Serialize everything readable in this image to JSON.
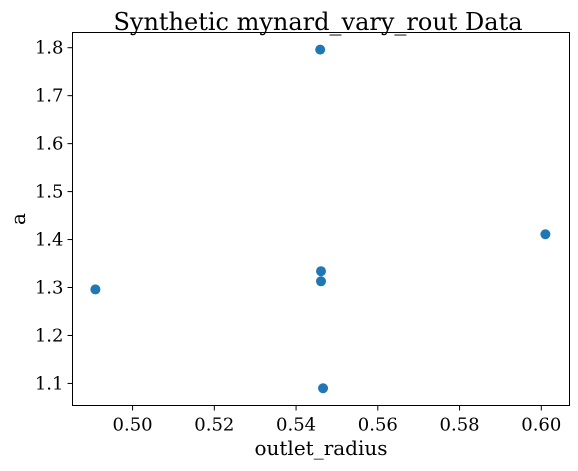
{
  "chart_data": {
    "type": "scatter",
    "title": "Synthetic mynard_vary_rout Data",
    "xlabel": "outlet_radius",
    "ylabel": "a",
    "xlim": [
      0.4853,
      0.6069
    ],
    "ylim": [
      1.054,
      1.8317
    ],
    "x_ticks": [
      0.5,
      0.52,
      0.54,
      0.56,
      0.58,
      0.6
    ],
    "x_tick_labels": [
      "0.50",
      "0.52",
      "0.54",
      "0.56",
      "0.58",
      "0.60"
    ],
    "y_ticks": [
      1.1,
      1.2,
      1.3,
      1.4,
      1.5,
      1.6,
      1.7,
      1.8
    ],
    "y_tick_labels": [
      "1.1",
      "1.2",
      "1.3",
      "1.4",
      "1.5",
      "1.6",
      "1.7",
      "1.8"
    ],
    "grid": false,
    "point_color": "#1f77b4",
    "points": [
      {
        "x": 0.4909,
        "y": 1.296
      },
      {
        "x": 0.5459,
        "y": 1.796
      },
      {
        "x": 0.5461,
        "y": 1.334
      },
      {
        "x": 0.5461,
        "y": 1.313
      },
      {
        "x": 0.5466,
        "y": 1.09
      },
      {
        "x": 0.601,
        "y": 1.411
      }
    ]
  }
}
